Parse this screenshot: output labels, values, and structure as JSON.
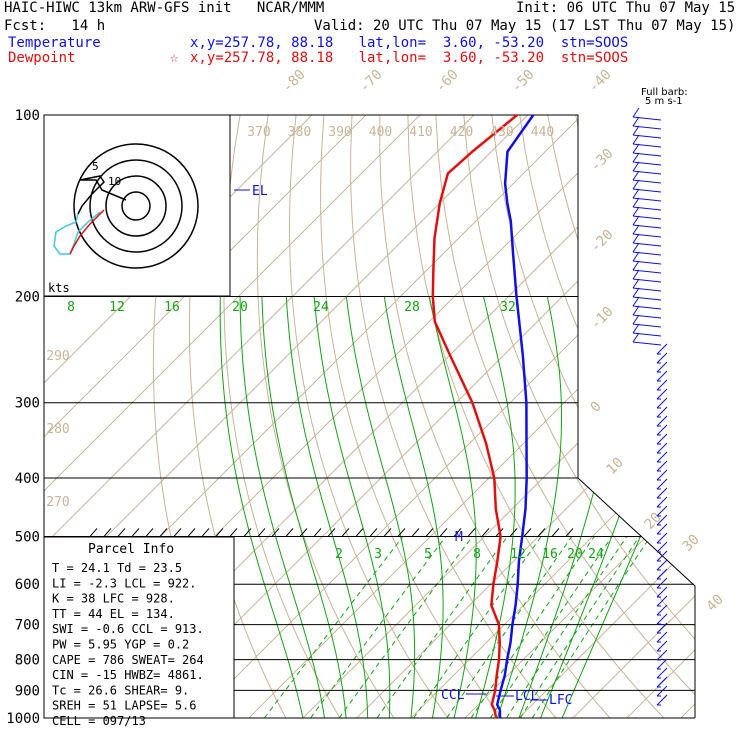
{
  "header": {
    "model_line": "HAIC-HIWC 13km ARW-GFS init   NCAR/MMM",
    "init_line": "Init: 06 UTC Thu 07 May 15",
    "fcst_line": "Fcst:   14 h",
    "valid_line": "Valid: 20 UTC Thu 07 May 15 (17 LST Thu 07 May 15)",
    "temp_label": "Temperature",
    "temp_info": "x,y=257.78, 88.18   lat,lon=  3.60, -53.20  stn=SOOS",
    "dew_label": "Dewpoint",
    "dew_info": "x,y=257.78, 88.18   lat,lon=  3.60, -53.20  stn=SOOS"
  },
  "colors": {
    "temperature": "#1010e0",
    "dewpoint": "#e01010",
    "isotherm": "#c8b496",
    "dry_adiabat": "#c8b496",
    "moist_adiabat": "#13a313",
    "mixing_ratio": "#13a313",
    "hodo_upper": "#e01010",
    "hodo_lower": "#40c8e0"
  },
  "barb_label": "Full barb:\n5 m s-1",
  "parcel": {
    "title": "Parcel Info",
    "rows": [
      "T   =   24.1  Td =  23.5",
      "LI  =   -2.3 LCL =  922.",
      "K   =    38  LFC =  928.",
      "TT  =    44  EL  =  134.",
      "SWI =   -0.6 CCL =  913.",
      "PW  =   5.95 YGP =   0.2",
      "CAPE =   786 SWEAT=  264",
      "CIN =    -15 HWBZ= 4861.",
      "Tc  =   26.6 SHEAR=   9.",
      "SREH =    51 LAPSE=   5.6",
      "CELL = 097/13"
    ]
  },
  "levels_text": {
    "el": "EL",
    "ccl": "CCL",
    "lcl": "LCL",
    "lfc": "LFC",
    "m": "M",
    "hodo_units": "kts",
    "hodo_ring1": "5",
    "hodo_ring2": "10"
  },
  "chart_data": {
    "type": "line",
    "y_axis": "pressure (hPa), logarithmic, inverted",
    "ylim": [
      1000,
      100
    ],
    "pressure_ticks": [
      100,
      200,
      300,
      400,
      500,
      600,
      700,
      800,
      900,
      1000
    ],
    "isotherm_labels": [
      -80,
      -70,
      -60,
      -50,
      -40,
      -30,
      -20,
      -10,
      0,
      10,
      20,
      30,
      40
    ],
    "theta_labels_top": [
      370,
      380,
      390,
      400,
      410,
      420,
      430,
      440
    ],
    "theta_labels_left": [
      290,
      280,
      270
    ],
    "mixing_ratio_labels_upper": [
      8,
      12,
      16,
      20,
      24,
      28,
      32
    ],
    "mixing_ratio_labels_lower": [
      2,
      3,
      5,
      8,
      12,
      16,
      20,
      24
    ],
    "series": [
      {
        "name": "Temperature",
        "points": [
          [
            1000,
            26.5
          ],
          [
            970,
            25.0
          ],
          [
            950,
            23.5
          ],
          [
            900,
            21.5
          ],
          [
            850,
            19.5
          ],
          [
            800,
            17.0
          ],
          [
            750,
            14.5
          ],
          [
            700,
            11.5
          ],
          [
            650,
            8.5
          ],
          [
            600,
            5.0
          ],
          [
            550,
            1.0
          ],
          [
            500,
            -3.0
          ],
          [
            450,
            -7.5
          ],
          [
            400,
            -13.0
          ],
          [
            350,
            -19.5
          ],
          [
            300,
            -27.0
          ],
          [
            250,
            -36.5
          ],
          [
            200,
            -48.5
          ],
          [
            170,
            -57.0
          ],
          [
            150,
            -63.5
          ],
          [
            140,
            -67.5
          ],
          [
            130,
            -71.5
          ],
          [
            115,
            -77.0
          ],
          [
            100,
            -79.0
          ]
        ]
      },
      {
        "name": "Dewpoint",
        "points": [
          [
            1000,
            25.8
          ],
          [
            970,
            24.0
          ],
          [
            950,
            22.5
          ],
          [
            900,
            20.5
          ],
          [
            850,
            18.0
          ],
          [
            800,
            15.5
          ],
          [
            750,
            12.5
          ],
          [
            700,
            9.0
          ],
          [
            650,
            4.0
          ],
          [
            600,
            0.5
          ],
          [
            550,
            -3.0
          ],
          [
            500,
            -7.0
          ],
          [
            450,
            -13.0
          ],
          [
            400,
            -19.0
          ],
          [
            350,
            -27.0
          ],
          [
            300,
            -37.0
          ],
          [
            250,
            -50.0
          ],
          [
            220,
            -59.0
          ],
          [
            200,
            -64.0
          ],
          [
            180,
            -69.0
          ],
          [
            160,
            -74.5
          ],
          [
            140,
            -80.0
          ],
          [
            125,
            -84.0
          ],
          [
            115,
            -83.5
          ],
          [
            100,
            -82.0
          ]
        ]
      }
    ]
  }
}
